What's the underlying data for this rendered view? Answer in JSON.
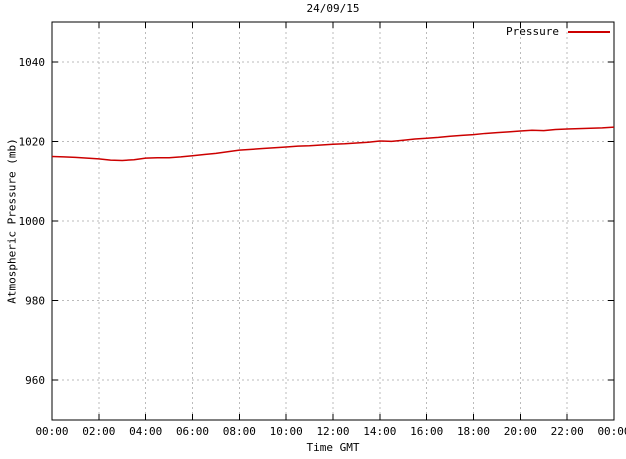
{
  "chart_data": {
    "type": "line",
    "title": "24/09/15",
    "xlabel": "Time GMT",
    "ylabel": "Atmospheric Pressure (mb)",
    "xlim": [
      0,
      24
    ],
    "ylim": [
      950,
      1050
    ],
    "grid": true,
    "colors": {
      "line": "#cc0000",
      "grid": "#bbbbbb",
      "border": "#000000"
    },
    "x_ticks": {
      "positions": [
        0,
        2,
        4,
        6,
        8,
        10,
        12,
        14,
        16,
        18,
        20,
        22,
        24
      ],
      "labels": [
        "00:00",
        "02:00",
        "04:00",
        "06:00",
        "08:00",
        "10:00",
        "12:00",
        "14:00",
        "16:00",
        "18:00",
        "20:00",
        "22:00",
        "00:00"
      ]
    },
    "y_ticks": [
      960,
      980,
      1000,
      1020,
      1040
    ],
    "legend": {
      "position": "top-right",
      "entries": [
        {
          "name": "Pressure",
          "color": "#cc0000"
        }
      ]
    },
    "series": [
      {
        "name": "Pressure",
        "color": "#cc0000",
        "x": [
          0,
          0.5,
          1,
          1.5,
          2,
          2.5,
          3,
          3.5,
          4,
          4.5,
          5,
          5.5,
          6,
          6.5,
          7,
          7.5,
          8,
          8.5,
          9,
          9.5,
          10,
          10.5,
          11,
          11.5,
          12,
          12.5,
          13,
          13.5,
          14,
          14.5,
          15,
          15.5,
          16,
          16.5,
          17,
          17.5,
          18,
          18.5,
          19,
          19.5,
          20,
          20.5,
          21,
          21.5,
          22,
          22.5,
          23,
          23.5,
          24
        ],
        "y": [
          1016.2,
          1016.1,
          1016.0,
          1015.8,
          1015.6,
          1015.3,
          1015.2,
          1015.4,
          1015.8,
          1015.9,
          1015.9,
          1016.1,
          1016.4,
          1016.7,
          1017.0,
          1017.4,
          1017.8,
          1018.0,
          1018.2,
          1018.4,
          1018.6,
          1018.8,
          1018.9,
          1019.1,
          1019.3,
          1019.4,
          1019.6,
          1019.8,
          1020.1,
          1020.0,
          1020.3,
          1020.6,
          1020.8,
          1021.0,
          1021.3,
          1021.5,
          1021.7,
          1022.0,
          1022.2,
          1022.4,
          1022.6,
          1022.8,
          1022.7,
          1023.0,
          1023.1,
          1023.2,
          1023.3,
          1023.4,
          1023.6
        ]
      }
    ]
  }
}
